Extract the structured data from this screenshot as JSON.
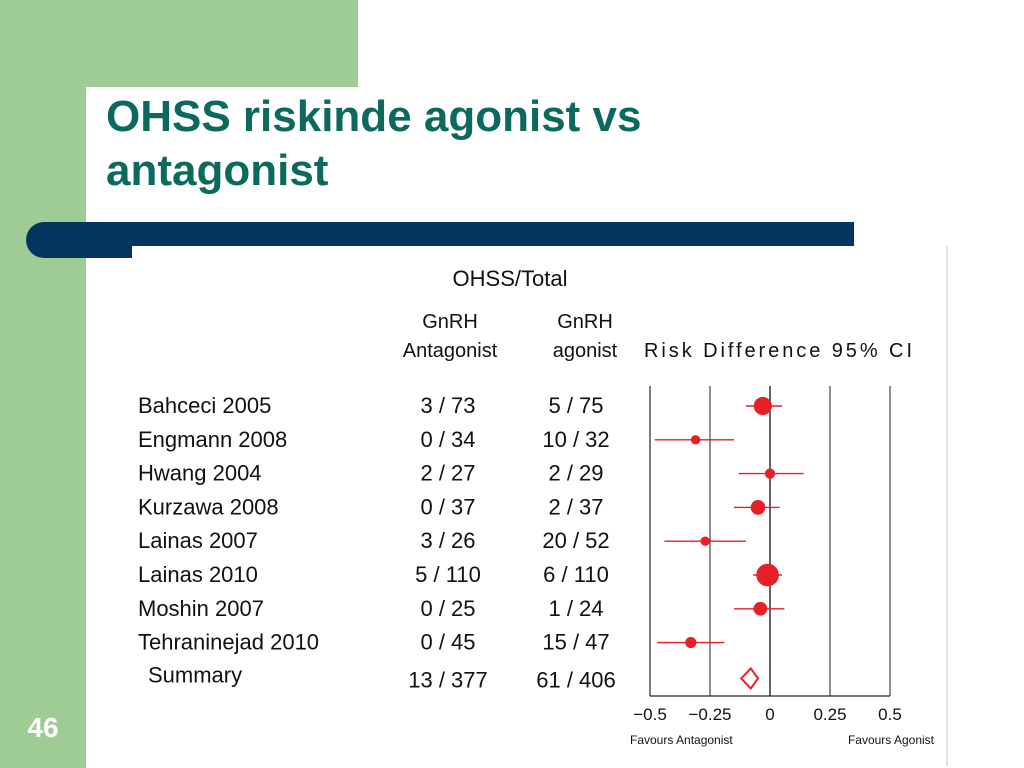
{
  "slide": {
    "title_line1": "OHSS riskinde agonist vs",
    "title_line2": "antagonist",
    "number": "46"
  },
  "colors": {
    "accent_green": "#9fcc95",
    "title_teal": "#0b6a5d",
    "bar_navy": "#04355f",
    "marker_red": "#e81f27"
  },
  "chart_data": {
    "type": "forest",
    "header_group": "OHSS/Total",
    "col1_header_line1": "GnRH",
    "col1_header_line2": "Antagonist",
    "col2_header_line1": "GnRH",
    "col2_header_line2": "agonist",
    "plot_header": "Risk Difference 95% CI",
    "xlim": [
      -0.5,
      0.5
    ],
    "x_ticks": [
      "−0.5",
      "−0.25",
      "0",
      "0.25",
      "0.5"
    ],
    "x_tick_values": [
      -0.5,
      -0.25,
      0,
      0.25,
      0.5
    ],
    "favours_left": "Favours Antagonist",
    "favours_right": "Favours Agonist",
    "studies": [
      {
        "name": "Bahceci 2005",
        "antagonist": "3 / 73",
        "agonist": "5 / 75",
        "rd": -0.03,
        "lo": -0.1,
        "hi": 0.05,
        "weight": 3
      },
      {
        "name": "Engmann 2008",
        "antagonist": "0 / 34",
        "agonist": "10 / 32",
        "rd": -0.31,
        "lo": -0.48,
        "hi": -0.15,
        "weight": 1
      },
      {
        "name": "Hwang 2004",
        "antagonist": "2 / 27",
        "agonist": "2 / 29",
        "rd": 0.0,
        "lo": -0.13,
        "hi": 0.14,
        "weight": 1.2
      },
      {
        "name": "Kurzawa 2008",
        "antagonist": "0 / 37",
        "agonist": "2 / 37",
        "rd": -0.05,
        "lo": -0.15,
        "hi": 0.04,
        "weight": 2.2
      },
      {
        "name": "Lainas 2007",
        "antagonist": "3 / 26",
        "agonist": "20 / 52",
        "rd": -0.27,
        "lo": -0.44,
        "hi": -0.1,
        "weight": 1
      },
      {
        "name": "Lainas 2010",
        "antagonist": "5 / 110",
        "agonist": "6 / 110",
        "rd": -0.01,
        "lo": -0.07,
        "hi": 0.05,
        "weight": 4
      },
      {
        "name": "Moshin 2007",
        "antagonist": "0 / 25",
        "agonist": "1 / 24",
        "rd": -0.04,
        "lo": -0.15,
        "hi": 0.06,
        "weight": 2
      },
      {
        "name": "Tehraninejad 2010",
        "antagonist": "0 / 45",
        "agonist": "15 / 47",
        "rd": -0.33,
        "lo": -0.47,
        "hi": -0.19,
        "weight": 1.4
      }
    ],
    "summary": {
      "name": "Summary",
      "antagonist": "13 / 377",
      "agonist": "61 / 406",
      "rd": -0.08,
      "lo": -0.12,
      "hi": -0.05
    }
  }
}
